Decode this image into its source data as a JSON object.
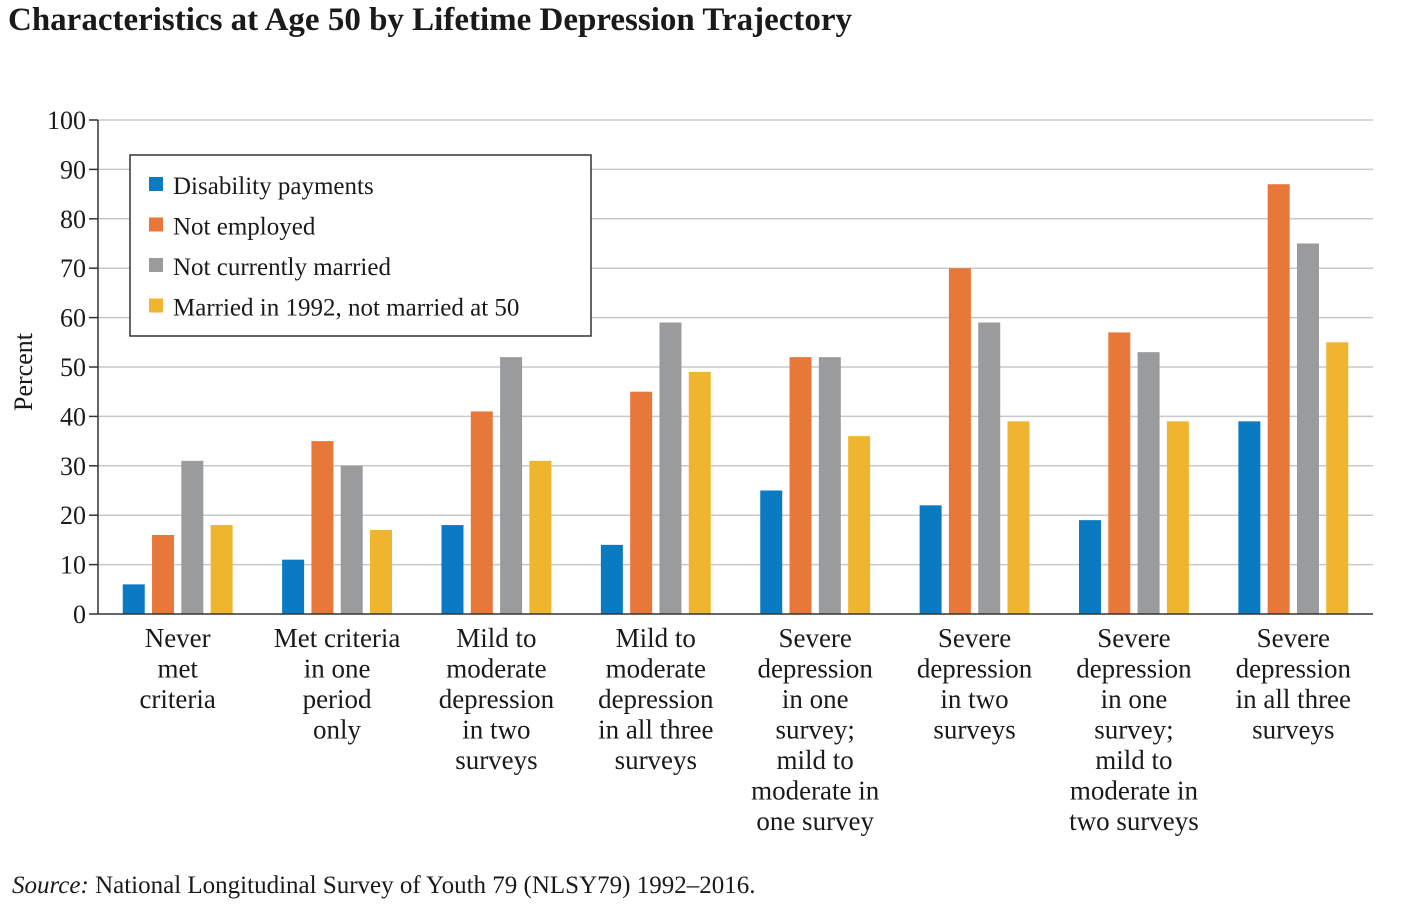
{
  "title": "Characteristics at Age 50 by Lifetime Depression Trajectory",
  "source": {
    "label": "Source:",
    "text": " National Longitudinal Survey of Youth 79 (NLSY79) 1992–2016."
  },
  "chart_data": {
    "type": "bar",
    "title": "Characteristics at Age 50 by Lifetime Depression Trajectory",
    "ylabel": "Percent",
    "xlabel": "",
    "ylim": [
      0,
      100
    ],
    "yticks": [
      0,
      10,
      20,
      30,
      40,
      50,
      60,
      70,
      80,
      90,
      100
    ],
    "grid": true,
    "legend_position": "top-left",
    "categories": [
      [
        "Never",
        "met",
        "criteria"
      ],
      [
        "Met criteria",
        "in one",
        "period",
        "only"
      ],
      [
        "Mild to",
        "moderate",
        "depression",
        "in two",
        "surveys"
      ],
      [
        "Mild to",
        "moderate",
        "depression",
        "in all three",
        "surveys"
      ],
      [
        "Severe",
        "depression",
        "in one",
        "survey;",
        "mild to",
        "moderate in",
        "one survey"
      ],
      [
        "Severe",
        "depression",
        "in two",
        "surveys"
      ],
      [
        "Severe",
        "depression",
        "in one",
        "survey;",
        "mild to",
        "moderate in",
        "two surveys"
      ],
      [
        "Severe",
        "depression",
        "in all three",
        "surveys"
      ]
    ],
    "series": [
      {
        "name": "Disability payments",
        "color": "#0a7bc2",
        "values": [
          6,
          11,
          18,
          14,
          25,
          22,
          19,
          39
        ]
      },
      {
        "name": "Not employed",
        "color": "#e8783a",
        "values": [
          16,
          35,
          41,
          45,
          52,
          70,
          57,
          87
        ]
      },
      {
        "name": "Not currently married",
        "color": "#9a9b9d",
        "values": [
          31,
          30,
          52,
          59,
          52,
          59,
          53,
          75
        ]
      },
      {
        "name": "Married in 1992, not married at 50",
        "color": "#f0b52e",
        "values": [
          18,
          17,
          31,
          49,
          36,
          39,
          39,
          55
        ]
      }
    ]
  }
}
